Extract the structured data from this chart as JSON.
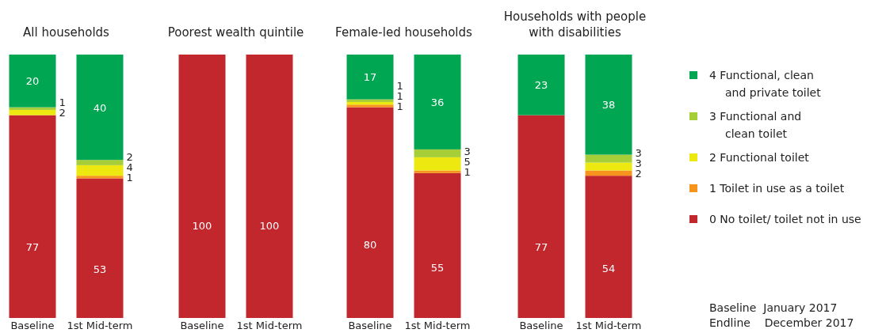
{
  "chart_data": [
    {
      "type": "bar",
      "title": "All households",
      "categories": [
        "Baseline",
        "1st Mid-term"
      ],
      "stacked": true,
      "ylim": [
        0,
        100
      ],
      "legend": "right",
      "series": [
        {
          "name": "0  No toilet/ toilet not in use",
          "color": "#c1272d",
          "values": [
            77,
            53
          ],
          "value_labels": [
            "77",
            "53"
          ]
        },
        {
          "name": "1   Toilet in use as a toilet",
          "color": "#f7941d",
          "values": [
            0,
            1
          ],
          "value_labels": [
            null,
            "1"
          ]
        },
        {
          "name": "2  Functional toilet",
          "color": "#eee811",
          "values": [
            2,
            4
          ],
          "value_labels": [
            "2",
            "4"
          ]
        },
        {
          "name": "3  Functional and clean toilet",
          "color": "#a6ce39",
          "values": [
            1,
            2
          ],
          "value_labels": [
            "1",
            "2"
          ]
        },
        {
          "name": "4  Functional, clean and private toilet",
          "color": "#00a651",
          "values": [
            20,
            40
          ],
          "value_labels": [
            "20",
            "40"
          ]
        }
      ]
    },
    {
      "type": "bar",
      "title": "Poorest wealth quintile",
      "categories": [
        "Baseline",
        "1st Mid-term"
      ],
      "stacked": true,
      "ylim": [
        0,
        100
      ],
      "series": [
        {
          "color": "#c1272d",
          "values": [
            100,
            100
          ],
          "value_labels": [
            "100",
            "100"
          ]
        },
        {
          "color": "#f7941d",
          "values": [
            0,
            0
          ],
          "value_labels": [
            null,
            null
          ]
        },
        {
          "color": "#eee811",
          "values": [
            0,
            0
          ],
          "value_labels": [
            null,
            null
          ]
        },
        {
          "color": "#a6ce39",
          "values": [
            0,
            0
          ],
          "value_labels": [
            null,
            null
          ]
        },
        {
          "color": "#00a651",
          "values": [
            0,
            0
          ],
          "value_labels": [
            null,
            null
          ]
        }
      ]
    },
    {
      "type": "bar",
      "title": "Female-led households",
      "categories": [
        "Baseline",
        "1st Mid-term"
      ],
      "stacked": true,
      "ylim": [
        0,
        100
      ],
      "series": [
        {
          "color": "#c1272d",
          "values": [
            80,
            55
          ],
          "value_labels": [
            "80",
            "55"
          ]
        },
        {
          "color": "#f7941d",
          "values": [
            1,
            1
          ],
          "value_labels": [
            "1",
            "1"
          ]
        },
        {
          "color": "#eee811",
          "values": [
            1,
            5
          ],
          "value_labels": [
            "1",
            "5"
          ]
        },
        {
          "color": "#a6ce39",
          "values": [
            1,
            3
          ],
          "value_labels": [
            "1",
            "3"
          ]
        },
        {
          "color": "#00a651",
          "values": [
            17,
            36
          ],
          "value_labels": [
            "17",
            "36"
          ]
        }
      ]
    },
    {
      "type": "bar",
      "title": "Households with people with disabilities",
      "categories": [
        "Baseline",
        "1st Mid-term"
      ],
      "stacked": true,
      "ylim": [
        0,
        100
      ],
      "annotations": [
        "Baseline  January 2017",
        "Endline    December 2017"
      ],
      "series": [
        {
          "color": "#c1272d",
          "values": [
            77,
            54
          ],
          "value_labels": [
            "77",
            "54"
          ]
        },
        {
          "color": "#f7941d",
          "values": [
            0,
            2
          ],
          "value_labels": [
            null,
            "2"
          ]
        },
        {
          "color": "#eee811",
          "values": [
            0,
            3
          ],
          "value_labels": [
            null,
            "3"
          ]
        },
        {
          "color": "#a6ce39",
          "values": [
            0,
            3
          ],
          "value_labels": [
            null,
            "3"
          ]
        },
        {
          "color": "#00a651",
          "values": [
            23,
            38
          ],
          "value_labels": [
            "23",
            "38"
          ]
        }
      ]
    }
  ]
}
